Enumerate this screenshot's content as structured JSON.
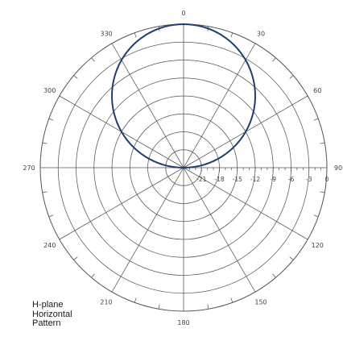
{
  "chart_data": {
    "type": "polar",
    "title": "",
    "angle_labels": [
      "0",
      "30",
      "60",
      "90",
      "120",
      "150",
      "180",
      "210",
      "240",
      "270",
      "300",
      "330"
    ],
    "angles_deg": [
      0,
      30,
      60,
      90,
      120,
      150,
      180,
      210,
      240,
      270,
      300,
      330
    ],
    "radial_labels": [
      "-21",
      "-18",
      "-15",
      "-12",
      "-9",
      "-6",
      "-3",
      "0"
    ],
    "radial_range_db": [
      -24,
      0
    ],
    "grid": true,
    "series": [
      {
        "color": "#1f3f6e",
        "pattern": "cosine-lobe",
        "peak_direction_deg": 0,
        "peak_db": 0,
        "null_direction_deg": 180
      }
    ]
  },
  "caption": {
    "line1": "H-plane",
    "line2": "Horizontal",
    "line3": "Pattern"
  },
  "colors": {
    "grid": "#555555",
    "series": "#1f3f6e",
    "text": "#444444"
  }
}
